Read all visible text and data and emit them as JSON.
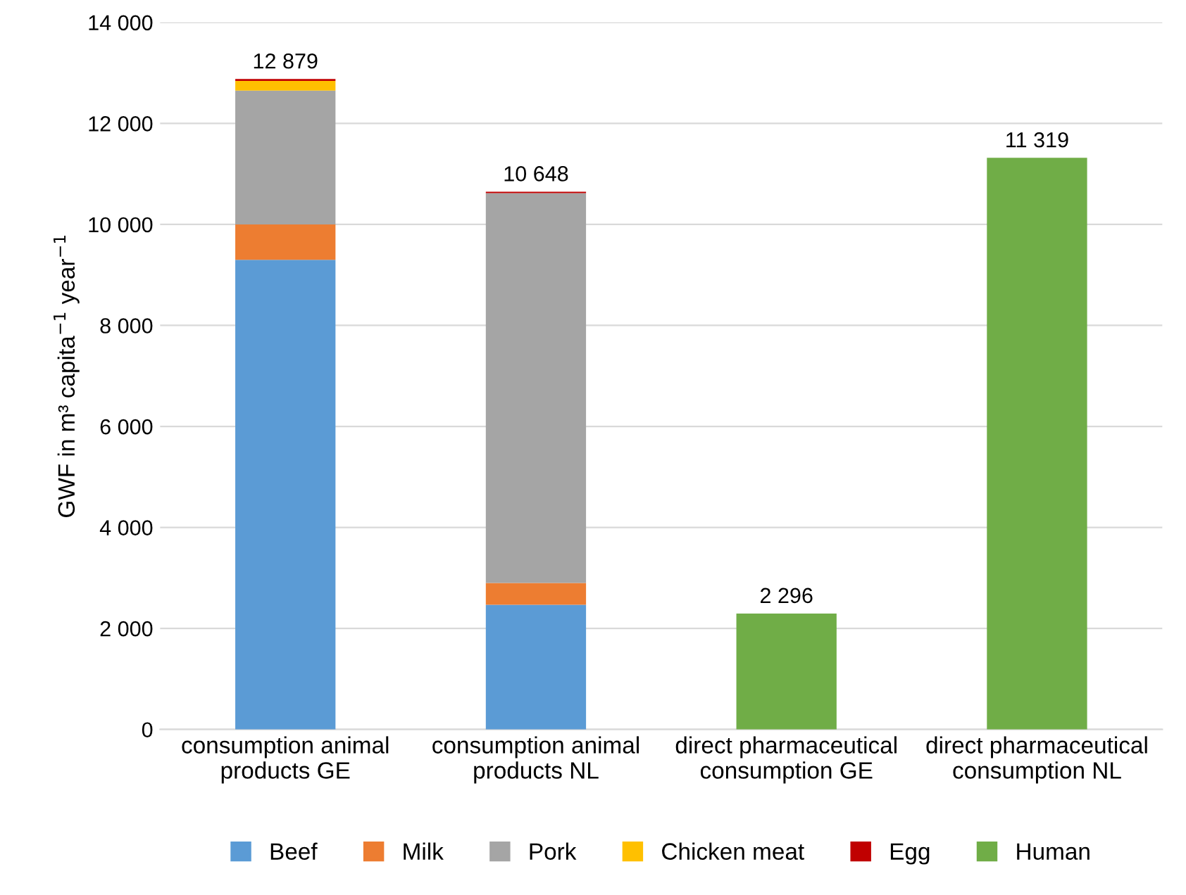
{
  "chart_data": {
    "type": "bar",
    "stacked": true,
    "ylabel": "GWF in m³ capita$^{−1}$ year$^{−1}$",
    "categories": [
      "consumption animal products GE",
      "consumption animal products NL",
      "direct pharmaceutical consumption GE",
      "direct pharmaceutical consumption NL"
    ],
    "series": [
      {
        "name": "Beef",
        "color": "#5b9bd5",
        "values": [
          9300,
          2470,
          null,
          null
        ]
      },
      {
        "name": "Milk",
        "color": "#ed7d31",
        "values": [
          700,
          430,
          null,
          null
        ]
      },
      {
        "name": "Pork",
        "color": "#a5a5a5",
        "values": [
          2650,
          7720,
          null,
          null
        ]
      },
      {
        "name": "Chicken meat",
        "color": "#ffc000",
        "values": [
          190,
          null,
          null,
          null
        ]
      },
      {
        "name": "Egg",
        "color": "#c00000",
        "values": [
          39,
          28,
          null,
          null
        ]
      },
      {
        "name": "Human",
        "color": "#70ad47",
        "values": [
          null,
          null,
          2296,
          11319
        ]
      }
    ],
    "totals": [
      "12 879",
      "10 648",
      "2 296",
      "11 319"
    ],
    "ylim": [
      0,
      14000
    ],
    "yticks": [
      0,
      {
        "value": 2000,
        "label": "2 000"
      },
      {
        "value": 4000,
        "label": "4 000"
      },
      {
        "value": 6000,
        "label": "6 000"
      },
      {
        "value": 8000,
        "label": "8 000"
      },
      {
        "value": 10000,
        "label": "10 000"
      },
      {
        "value": 12000,
        "label": "12 000"
      },
      {
        "value": 14000,
        "label": "14 000"
      }
    ],
    "grid": "y",
    "legend": "bottom"
  }
}
